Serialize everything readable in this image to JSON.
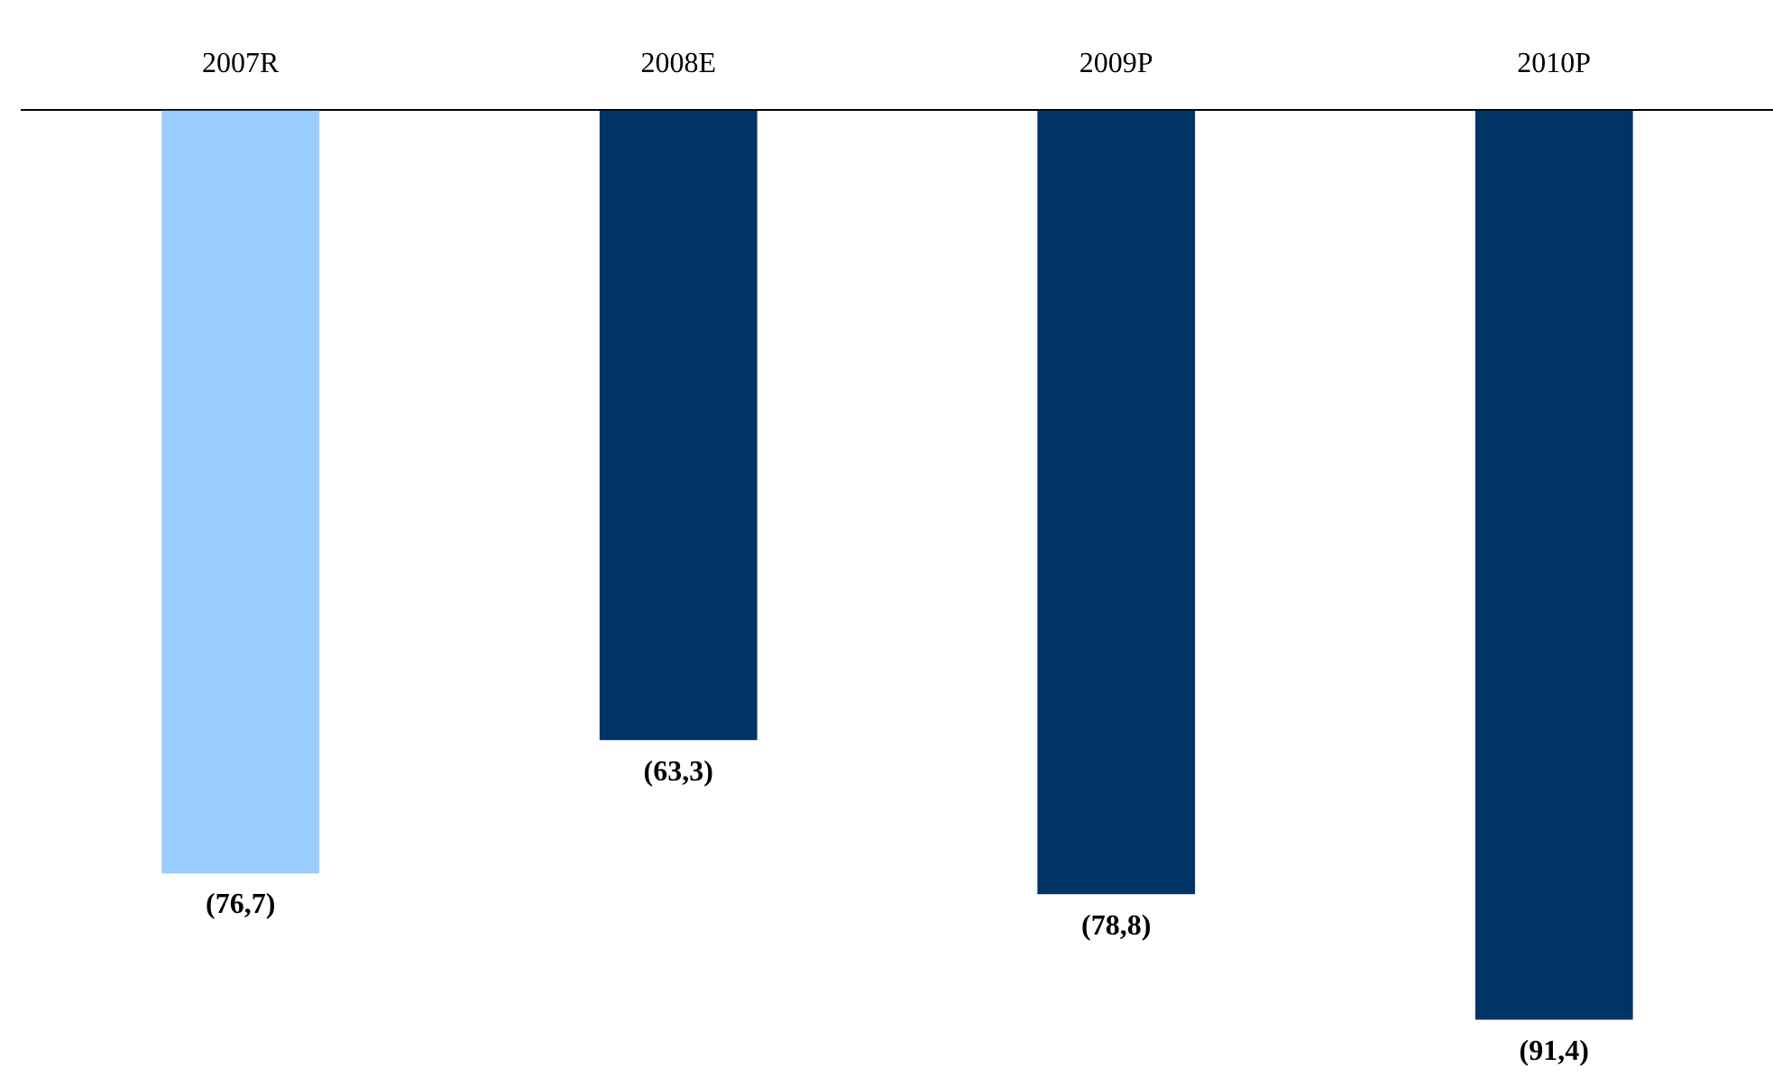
{
  "chart_data": {
    "type": "bar",
    "categories": [
      "2007R",
      "2008E",
      "2009P",
      "2010P"
    ],
    "values": [
      -76.7,
      -63.3,
      -78.8,
      -91.4
    ],
    "colors": [
      "#99ccff",
      "#003366",
      "#003366",
      "#003366"
    ],
    "value_labels": [
      "(76,7)",
      "(63,3)",
      "(78,8)",
      "(91,4)"
    ],
    "tick_labels": "x",
    "grid": false,
    "legend": false
  }
}
